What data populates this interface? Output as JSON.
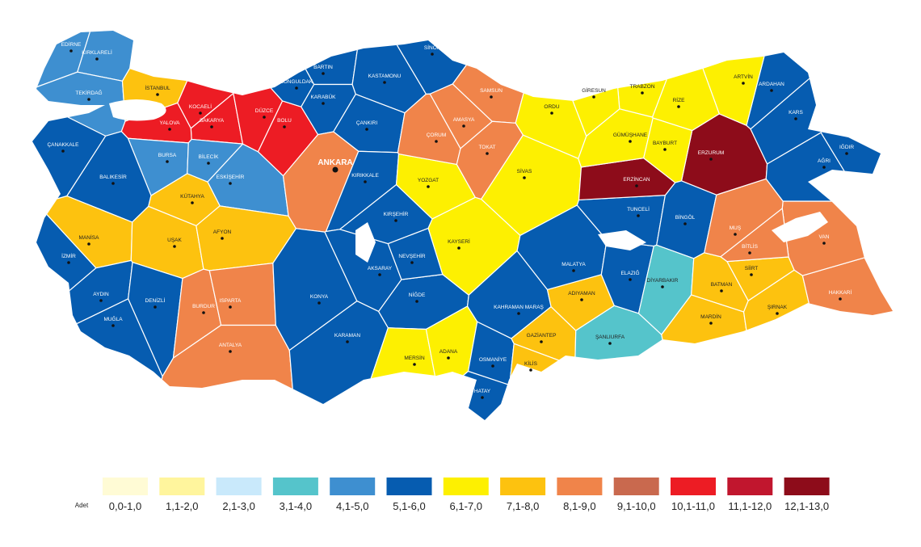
{
  "legend": {
    "title": "Adet",
    "items": [
      {
        "label": "0,0-1,0",
        "color": "#fffbd5"
      },
      {
        "label": "1,1-2,0",
        "color": "#fff59d"
      },
      {
        "label": "2,1-3,0",
        "color": "#c9e9fb"
      },
      {
        "label": "3,1-4,0",
        "color": "#55c4cb"
      },
      {
        "label": "4,1-5,0",
        "color": "#3e8fd0"
      },
      {
        "label": "5,1-6,0",
        "color": "#065cb0"
      },
      {
        "label": "6,1-7,0",
        "color": "#fdf001"
      },
      {
        "label": "7,1-8,0",
        "color": "#fdc20f"
      },
      {
        "label": "8,1-9,0",
        "color": "#f0844a"
      },
      {
        "label": "9,1-10,0",
        "color": "#c9694e"
      },
      {
        "label": "10,1-11,0",
        "color": "#ed1c24"
      },
      {
        "label": "11,1-12,0",
        "color": "#c1162e"
      },
      {
        "label": "12,1-13,0",
        "color": "#8d0c1a"
      }
    ]
  },
  "provinces": [
    {
      "name": "EDİRNE",
      "class": 4
    },
    {
      "name": "KIRKLARELİ",
      "class": 4
    },
    {
      "name": "TEKİRDAĞ",
      "class": 4
    },
    {
      "name": "İSTANBUL",
      "class": 7
    },
    {
      "name": "KOCAELİ",
      "class": 10
    },
    {
      "name": "SAKARYA",
      "class": 10
    },
    {
      "name": "DÜZCE",
      "class": 10
    },
    {
      "name": "BOLU",
      "class": 10
    },
    {
      "name": "YALOVA",
      "class": 10
    },
    {
      "name": "BURSA",
      "class": 4
    },
    {
      "name": "BİLECİK",
      "class": 4
    },
    {
      "name": "ESKİŞEHİR",
      "class": 4
    },
    {
      "name": "ÇANAKKALE",
      "class": 5
    },
    {
      "name": "BALIKESİR",
      "class": 5
    },
    {
      "name": "KÜTAHYA",
      "class": 7
    },
    {
      "name": "MANİSA",
      "class": 7
    },
    {
      "name": "UŞAK",
      "class": 7
    },
    {
      "name": "AFYON",
      "class": 7
    },
    {
      "name": "İZMİR",
      "class": 5
    },
    {
      "name": "AYDIN",
      "class": 5
    },
    {
      "name": "DENİZLİ",
      "class": 5
    },
    {
      "name": "MUĞLA",
      "class": 5
    },
    {
      "name": "BURDUR",
      "class": 8
    },
    {
      "name": "ISPARTA",
      "class": 8
    },
    {
      "name": "ANTALYA",
      "class": 8
    },
    {
      "name": "ZONGULDAK",
      "class": 5
    },
    {
      "name": "BARTIN",
      "class": 5
    },
    {
      "name": "KARABÜK",
      "class": 5
    },
    {
      "name": "KASTAMONU",
      "class": 5
    },
    {
      "name": "SİNOP",
      "class": 5
    },
    {
      "name": "ÇANKIRI",
      "class": 5
    },
    {
      "name": "ANKARA",
      "class": 8
    },
    {
      "name": "KIRIKKALE",
      "class": 5
    },
    {
      "name": "KONYA",
      "class": 5
    },
    {
      "name": "AKSARAY",
      "class": 5
    },
    {
      "name": "KARAMAN",
      "class": 5
    },
    {
      "name": "NİĞDE",
      "class": 5
    },
    {
      "name": "NEVŞEHİR",
      "class": 5
    },
    {
      "name": "KIRŞEHİR",
      "class": 5
    },
    {
      "name": "YOZGAT",
      "class": 6
    },
    {
      "name": "ÇORUM",
      "class": 8
    },
    {
      "name": "AMASYA",
      "class": 8
    },
    {
      "name": "SAMSUN",
      "class": 8
    },
    {
      "name": "TOKAT",
      "class": 8
    },
    {
      "name": "SİVAS",
      "class": 6
    },
    {
      "name": "KAYSERİ",
      "class": 6
    },
    {
      "name": "MERSİN",
      "class": 6
    },
    {
      "name": "ADANA",
      "class": 6
    },
    {
      "name": "OSMANİYE",
      "class": 5
    },
    {
      "name": "HATAY",
      "class": 5
    },
    {
      "name": "KAHRAMAN MARAŞ",
      "class": 5
    },
    {
      "name": "GAZİANTEP",
      "class": 7
    },
    {
      "name": "KİLİS",
      "class": 7
    },
    {
      "name": "ŞANLIURFA",
      "class": 3
    },
    {
      "name": "ADIYAMAN",
      "class": 7
    },
    {
      "name": "MALATYA",
      "class": 5
    },
    {
      "name": "ELAZIĞ",
      "class": 5
    },
    {
      "name": "TUNCELİ",
      "class": 5
    },
    {
      "name": "BİNGÖL",
      "class": 5
    },
    {
      "name": "DİYARBAKIR",
      "class": 3
    },
    {
      "name": "BATMAN",
      "class": 7
    },
    {
      "name": "SİİRT",
      "class": 7
    },
    {
      "name": "MARDİN",
      "class": 7
    },
    {
      "name": "ŞIRNAK",
      "class": 7
    },
    {
      "name": "HAKKARİ",
      "class": 8
    },
    {
      "name": "VAN",
      "class": 8
    },
    {
      "name": "BİTLİS",
      "class": 8
    },
    {
      "name": "MUŞ",
      "class": 8
    },
    {
      "name": "ERZİNCAN",
      "class": 12
    },
    {
      "name": "ERZURUM",
      "class": 12
    },
    {
      "name": "AĞRI",
      "class": 5
    },
    {
      "name": "IĞDIR",
      "class": 5
    },
    {
      "name": "KARS",
      "class": 5
    },
    {
      "name": "ARDAHAN",
      "class": 5
    },
    {
      "name": "ARTVİN",
      "class": 6
    },
    {
      "name": "RİZE",
      "class": 6
    },
    {
      "name": "TRABZON",
      "class": 6
    },
    {
      "name": "GÜMÜŞHANE",
      "class": 6
    },
    {
      "name": "BAYBURT",
      "class": 6
    },
    {
      "name": "GİRESUN",
      "class": 6
    },
    {
      "name": "ORDU",
      "class": 6
    }
  ]
}
